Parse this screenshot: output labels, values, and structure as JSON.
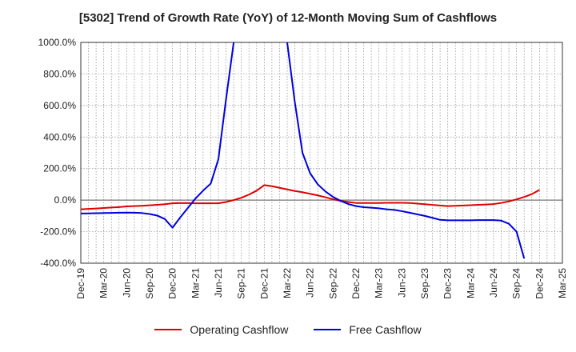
{
  "chart_data": {
    "type": "line",
    "title": "[5302]  Trend of Growth Rate (YoY) of 12-Month Moving Sum of Cashflows",
    "xlabel": "",
    "ylabel": "",
    "ylim": [
      -400,
      1000
    ],
    "y_ticks": [
      1000,
      800,
      600,
      400,
      200,
      0,
      -200,
      -400
    ],
    "y_tick_labels": [
      "1000.0%",
      "800.0%",
      "600.0%",
      "400.0%",
      "200.0%",
      "0.0%",
      "-200.0%",
      "-400.0%"
    ],
    "x_tick_labels": [
      "Dec-19",
      "Mar-20",
      "Jun-20",
      "Sep-20",
      "Dec-20",
      "Mar-21",
      "Jun-21",
      "Sep-21",
      "Dec-21",
      "Mar-22",
      "Jun-22",
      "Sep-22",
      "Dec-22",
      "Mar-23",
      "Jun-23",
      "Sep-23",
      "Dec-23",
      "Mar-24",
      "Jun-24",
      "Sep-24",
      "Dec-24",
      "Mar-25"
    ],
    "grid": true,
    "legend_position": "bottom",
    "series": [
      {
        "name": "Operating Cashflow",
        "color": "#e00000",
        "x": [
          "Dec-19",
          "Jan-20",
          "Feb-20",
          "Mar-20",
          "Apr-20",
          "May-20",
          "Jun-20",
          "Jul-20",
          "Aug-20",
          "Sep-20",
          "Oct-20",
          "Nov-20",
          "Dec-20",
          "Jan-21",
          "Feb-21",
          "Mar-21",
          "Apr-21",
          "May-21",
          "Jun-21",
          "Jul-21",
          "Aug-21",
          "Sep-21",
          "Oct-21",
          "Nov-21",
          "Dec-21",
          "Jan-22",
          "Feb-22",
          "Mar-22",
          "Apr-22",
          "May-22",
          "Jun-22",
          "Jul-22",
          "Aug-22",
          "Sep-22",
          "Oct-22",
          "Nov-22",
          "Dec-22",
          "Jan-23",
          "Feb-23",
          "Mar-23",
          "Apr-23",
          "May-23",
          "Jun-23",
          "Jul-23",
          "Aug-23",
          "Sep-23",
          "Oct-23",
          "Nov-23",
          "Dec-23",
          "Jan-24",
          "Feb-24",
          "Mar-24",
          "Apr-24",
          "May-24",
          "Jun-24",
          "Jul-24",
          "Aug-24",
          "Sep-24",
          "Oct-24",
          "Nov-24",
          "Dec-24"
        ],
        "values": [
          -58,
          -56,
          -53,
          -50,
          -47,
          -44,
          -40,
          -38,
          -36,
          -33,
          -30,
          -26,
          -20,
          -19,
          -19,
          -20,
          -20,
          -20,
          -20,
          -12,
          0,
          15,
          35,
          60,
          95,
          88,
          78,
          68,
          58,
          50,
          40,
          30,
          18,
          5,
          -5,
          -12,
          -18,
          -18,
          -18,
          -18,
          -17,
          -17,
          -17,
          -18,
          -22,
          -26,
          -30,
          -34,
          -38,
          -36,
          -34,
          -32,
          -30,
          -28,
          -25,
          -18,
          -8,
          5,
          20,
          38,
          65
        ]
      },
      {
        "name": "Free Cashflow",
        "color": "#0000dd",
        "x": [
          "Dec-19",
          "Jan-20",
          "Feb-20",
          "Mar-20",
          "Apr-20",
          "May-20",
          "Jun-20",
          "Jul-20",
          "Aug-20",
          "Sep-20",
          "Oct-20",
          "Nov-20",
          "Dec-20",
          "Jan-21",
          "Feb-21",
          "Mar-21",
          "Apr-21",
          "May-21",
          "Jun-21",
          "Jul-21",
          "Aug-21",
          "Aug-21b",
          "Sep-21",
          "Feb-22",
          "Mar-22",
          "Apr-22",
          "May-22",
          "Jun-22",
          "Jul-22",
          "Aug-22",
          "Sep-22",
          "Oct-22",
          "Nov-22",
          "Dec-22",
          "Jan-23",
          "Feb-23",
          "Mar-23",
          "Apr-23",
          "May-23",
          "Jun-23",
          "Jul-23",
          "Aug-23",
          "Sep-23",
          "Oct-23",
          "Nov-23",
          "Dec-23",
          "Jan-24",
          "Feb-24",
          "Mar-24",
          "Apr-24",
          "May-24",
          "Jun-24",
          "Jul-24",
          "Aug-24",
          "Sep-24",
          "Oct-24"
        ],
        "x_index": [
          0,
          1,
          2,
          3,
          4,
          5,
          6,
          7,
          8,
          9,
          10,
          11,
          12,
          13,
          14,
          15,
          16,
          17,
          18,
          19,
          20,
          20.7,
          21,
          26,
          27,
          28,
          29,
          30,
          31,
          32,
          33,
          34,
          35,
          36,
          37,
          38,
          39,
          40,
          41,
          42,
          43,
          44,
          45,
          46,
          47,
          48,
          49,
          50,
          51,
          52,
          53,
          54,
          55,
          56,
          57,
          58
        ],
        "values": [
          -85,
          -84,
          -83,
          -82,
          -81,
          -80,
          -79,
          -80,
          -82,
          -88,
          -98,
          -120,
          -175,
          -110,
          -50,
          10,
          60,
          105,
          260,
          640,
          1000,
          1100,
          1100,
          1100,
          1000,
          620,
          300,
          170,
          100,
          55,
          20,
          -5,
          -25,
          -38,
          -45,
          -48,
          -52,
          -58,
          -62,
          -70,
          -80,
          -90,
          -100,
          -112,
          -125,
          -128,
          -128,
          -128,
          -128,
          -127,
          -127,
          -127,
          -130,
          -150,
          -200,
          -370
        ]
      }
    ]
  },
  "legend": {
    "operating": "Operating Cashflow",
    "free": "Free Cashflow"
  }
}
